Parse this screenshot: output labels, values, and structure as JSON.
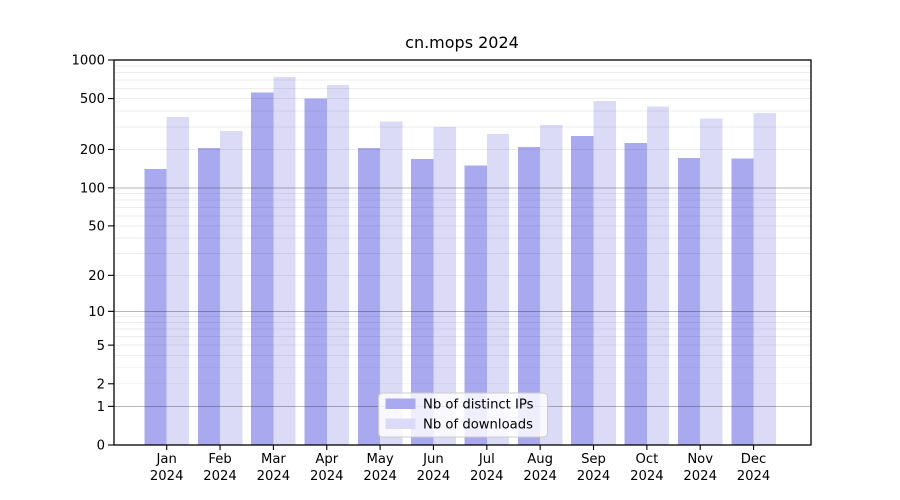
{
  "chart_data": {
    "type": "bar",
    "title": "cn.mops 2024",
    "categories": [
      "Jan",
      "Feb",
      "Mar",
      "Apr",
      "May",
      "Jun",
      "Jul",
      "Aug",
      "Sep",
      "Oct",
      "Nov",
      "Dec"
    ],
    "year_label": "2024",
    "series": [
      {
        "name": "Nb of distinct IPs",
        "color": "#A9A9F0",
        "values": [
          140,
          205,
          560,
          500,
          205,
          168,
          150,
          210,
          255,
          225,
          172,
          170
        ]
      },
      {
        "name": "Nb of downloads",
        "color": "#DBDBF7",
        "values": [
          360,
          280,
          740,
          640,
          330,
          300,
          265,
          310,
          480,
          435,
          350,
          385
        ]
      }
    ],
    "yscale": "log10(value+1)",
    "yticks": [
      0,
      1,
      2,
      5,
      10,
      20,
      50,
      100,
      200,
      500,
      1000
    ],
    "ylim": [
      0,
      1000
    ],
    "grid": "horizontal, minor 2-9 per decade faint, major at decades darker, drawn over bars",
    "legend_position": "inside bottom-center",
    "colors": {
      "grid_major": "rgba(0,0,0,0.28)",
      "grid_minor": "rgba(0,0,0,0.07)",
      "axis": "#000000",
      "background": "#ffffff"
    }
  }
}
